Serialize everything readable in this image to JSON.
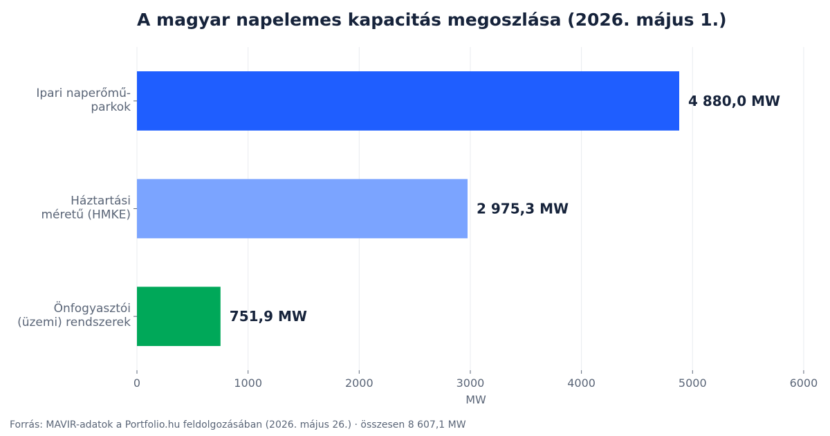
{
  "chart_data": {
    "type": "bar",
    "orientation": "horizontal",
    "title": "A magyar napelemes kapacitás megoszlása (2026. május 1.)",
    "xlabel": "MW",
    "ylabel": "",
    "xlim": [
      0,
      6100
    ],
    "xticks": [
      0,
      1000,
      2000,
      3000,
      4000,
      5000,
      6000
    ],
    "grid": true,
    "categories": [
      [
        "Ipari naperőmű-",
        "parkok"
      ],
      [
        "Háztartási",
        "méretű (HMKE)"
      ],
      [
        "Önfogyasztói",
        "(üzemi) rendszerek"
      ]
    ],
    "values": [
      4880.0,
      2975.3,
      751.9
    ],
    "value_labels": [
      "4 880,0 MW",
      "2 975,3 MW",
      "751,9 MW"
    ],
    "colors": [
      "#1f5eff",
      "#7ba4ff",
      "#00a859"
    ]
  },
  "footer": {
    "source": "Forrás: MAVIR-adatok a Portfolio.hu feldolgozásában (2026. május 26.) · összesen 8 607,1 MW"
  }
}
